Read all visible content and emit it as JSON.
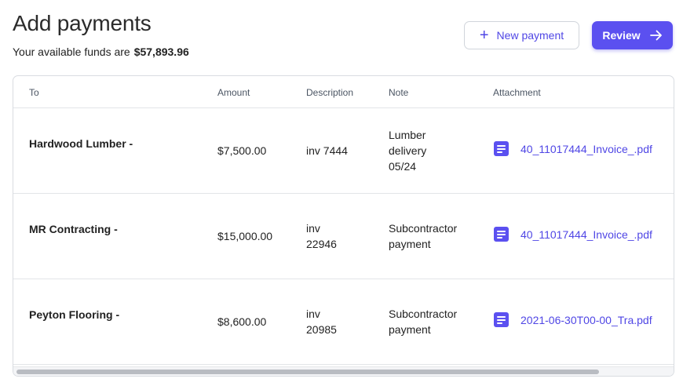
{
  "header": {
    "title": "Add payments",
    "funds_label": "Your available funds are",
    "funds_amount": "$57,893.96"
  },
  "toolbar": {
    "new_payment_label": "New payment",
    "review_label": "Review"
  },
  "table": {
    "columns": [
      "To",
      "Amount",
      "Description",
      "Note",
      "Attachment"
    ],
    "rows": [
      {
        "to": "Hardwood Lumber -",
        "amount": "$7,500.00",
        "description": "inv 7444",
        "note": "Lumber delivery 05/24",
        "attachment": "40_11017444_Invoice_.pdf"
      },
      {
        "to": "MR Contracting -",
        "amount": "$15,000.00",
        "description": "inv 22946",
        "note": "Subcontractor payment",
        "attachment": "40_11017444_Invoice_.pdf"
      },
      {
        "to": "Peyton Flooring -",
        "amount": "$8,600.00",
        "description": "inv 20985",
        "note": "Subcontractor payment",
        "attachment": "2021-06-30T00-00_Tra.pdf"
      }
    ]
  },
  "icons": {
    "attachment": "document-icon",
    "add": "plus-icon",
    "review": "arrow-right-icon"
  },
  "colors": {
    "accent": "#5b50f0",
    "link": "#4f46e5"
  }
}
